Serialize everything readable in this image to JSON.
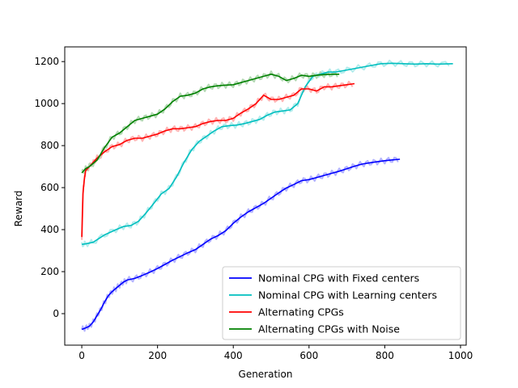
{
  "chart_data": {
    "type": "line",
    "xlabel": "Generation",
    "ylabel": "Reward",
    "xlim": [
      -45,
      1015
    ],
    "ylim": [
      -150,
      1270
    ],
    "xticks": [
      0,
      200,
      400,
      600,
      800,
      1000
    ],
    "yticks": [
      0,
      200,
      400,
      600,
      800,
      1000,
      1200
    ],
    "grid": false,
    "legend_position": "lower-right",
    "series": [
      {
        "name": "Nominal CPG with Fixed centers",
        "color": "#0000ff",
        "raw_color": "#b3b3ff",
        "x": [
          0,
          10,
          20,
          30,
          40,
          50,
          60,
          70,
          80,
          90,
          100,
          110,
          120,
          140,
          160,
          180,
          200,
          220,
          240,
          260,
          280,
          300,
          320,
          340,
          360,
          380,
          400,
          420,
          440,
          460,
          480,
          500,
          520,
          540,
          560,
          580,
          600,
          620,
          640,
          660,
          680,
          700,
          720,
          740,
          760,
          780,
          800,
          820,
          840
        ],
        "values": [
          -75,
          -68,
          -60,
          -40,
          -10,
          20,
          55,
          85,
          105,
          120,
          135,
          150,
          160,
          168,
          182,
          198,
          215,
          235,
          255,
          272,
          290,
          305,
          330,
          355,
          372,
          395,
          430,
          460,
          485,
          505,
          525,
          550,
          575,
          598,
          615,
          633,
          638,
          648,
          658,
          668,
          678,
          690,
          702,
          712,
          718,
          723,
          728,
          732,
          735
        ]
      },
      {
        "name": "Nominal CPG with Learning centers",
        "color": "#00bfbf",
        "raw_color": "#b3ecec",
        "x": [
          0,
          10,
          30,
          60,
          90,
          110,
          130,
          150,
          170,
          190,
          210,
          230,
          250,
          270,
          290,
          310,
          330,
          350,
          370,
          390,
          410,
          430,
          450,
          470,
          490,
          510,
          530,
          550,
          570,
          590,
          610,
          630,
          650,
          670,
          700,
          730,
          760,
          790,
          820,
          850,
          880,
          910,
          940,
          980
        ],
        "values": [
          330,
          332,
          340,
          375,
          400,
          415,
          420,
          440,
          480,
          525,
          570,
          595,
          650,
          720,
          780,
          820,
          845,
          870,
          890,
          895,
          898,
          905,
          915,
          925,
          945,
          960,
          965,
          970,
          1000,
          1080,
          1130,
          1140,
          1150,
          1150,
          1160,
          1170,
          1180,
          1190,
          1192,
          1190,
          1188,
          1190,
          1188,
          1190
        ]
      },
      {
        "name": "Alternating CPGs",
        "color": "#ff0000",
        "raw_color": "#ffb3b3",
        "x": [
          0,
          3,
          6,
          10,
          20,
          30,
          40,
          60,
          80,
          100,
          120,
          140,
          160,
          180,
          200,
          220,
          240,
          260,
          280,
          300,
          320,
          340,
          360,
          380,
          400,
          420,
          440,
          460,
          480,
          500,
          520,
          540,
          560,
          580,
          600,
          620,
          640,
          660,
          680,
          700,
          720
        ],
        "values": [
          365,
          570,
          630,
          680,
          700,
          720,
          740,
          770,
          795,
          805,
          825,
          835,
          835,
          845,
          855,
          870,
          880,
          880,
          885,
          890,
          905,
          915,
          920,
          920,
          930,
          955,
          975,
          1000,
          1040,
          1020,
          1020,
          1030,
          1040,
          1070,
          1070,
          1060,
          1080,
          1080,
          1085,
          1090,
          1095
        ]
      },
      {
        "name": "Alternating CPGs with Noise",
        "color": "#008000",
        "raw_color": "#b3d9b3",
        "x": [
          0,
          10,
          20,
          40,
          60,
          80,
          100,
          120,
          140,
          160,
          180,
          200,
          220,
          240,
          260,
          280,
          300,
          320,
          340,
          360,
          380,
          400,
          420,
          440,
          460,
          480,
          500,
          520,
          540,
          560,
          580,
          600,
          620,
          640,
          660,
          680
        ],
        "values": [
          670,
          690,
          700,
          730,
          790,
          840,
          860,
          890,
          920,
          930,
          940,
          950,
          975,
          1010,
          1035,
          1040,
          1050,
          1070,
          1080,
          1085,
          1088,
          1090,
          1100,
          1110,
          1120,
          1130,
          1140,
          1130,
          1110,
          1120,
          1135,
          1130,
          1135,
          1138,
          1140,
          1140
        ]
      }
    ]
  }
}
